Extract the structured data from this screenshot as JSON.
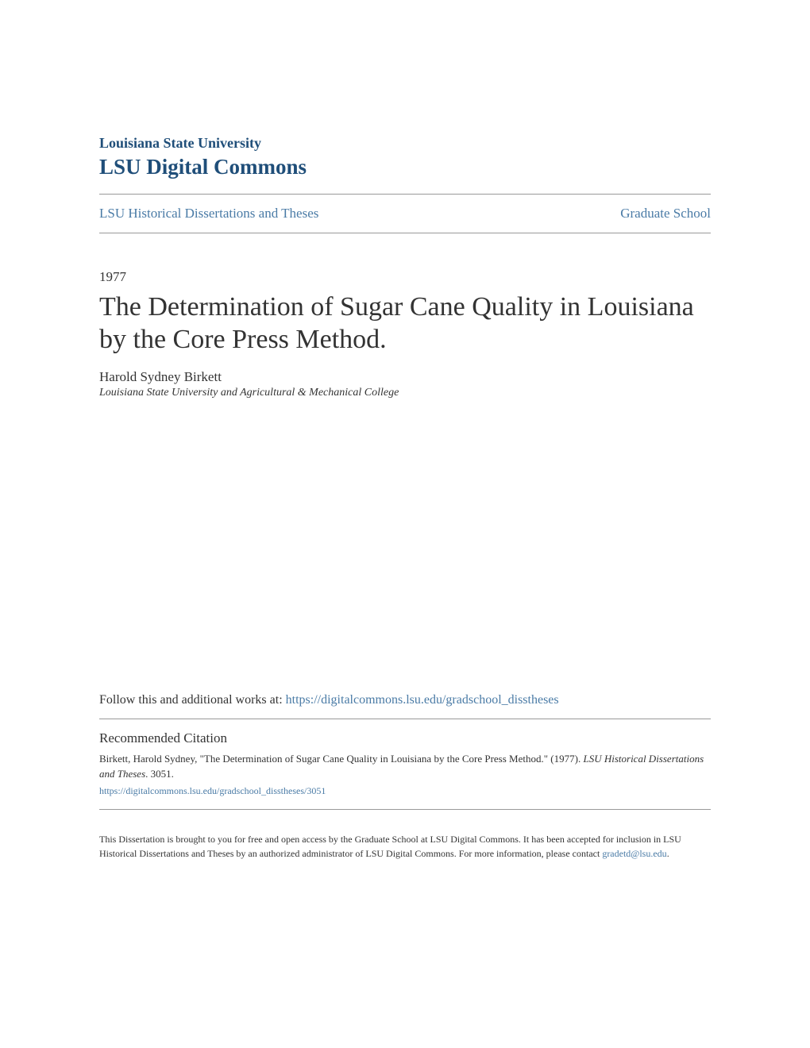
{
  "header": {
    "institution": "Louisiana State University",
    "repository": "LSU Digital Commons"
  },
  "nav": {
    "collection": "LSU Historical Dissertations and Theses",
    "school": "Graduate School"
  },
  "paper": {
    "year": "1977",
    "title": "The Determination of Sugar Cane Quality in Louisiana by the Core Press Method.",
    "author": "Harold Sydney Birkett",
    "affiliation": "Louisiana State University and Agricultural & Mechanical College"
  },
  "follow": {
    "prefix": "Follow this and additional works at: ",
    "url": "https://digitalcommons.lsu.edu/gradschool_disstheses"
  },
  "citation": {
    "heading": "Recommended Citation",
    "text_part1": "Birkett, Harold Sydney, \"The Determination of Sugar Cane Quality in Louisiana by the Core Press Method.\" (1977). ",
    "text_italic": "LSU Historical Dissertations and Theses",
    "text_part2": ". 3051.",
    "url": "https://digitalcommons.lsu.edu/gradschool_disstheses/3051"
  },
  "footer": {
    "text": "This Dissertation is brought to you for free and open access by the Graduate School at LSU Digital Commons. It has been accepted for inclusion in LSU Historical Dissertations and Theses by an authorized administrator of LSU Digital Commons. For more information, please contact ",
    "email": "gradetd@lsu.edu",
    "suffix": "."
  },
  "colors": {
    "primary": "#1f4e79",
    "link": "#4a7ba6",
    "text": "#333333",
    "divider": "#999999",
    "background": "#ffffff"
  }
}
